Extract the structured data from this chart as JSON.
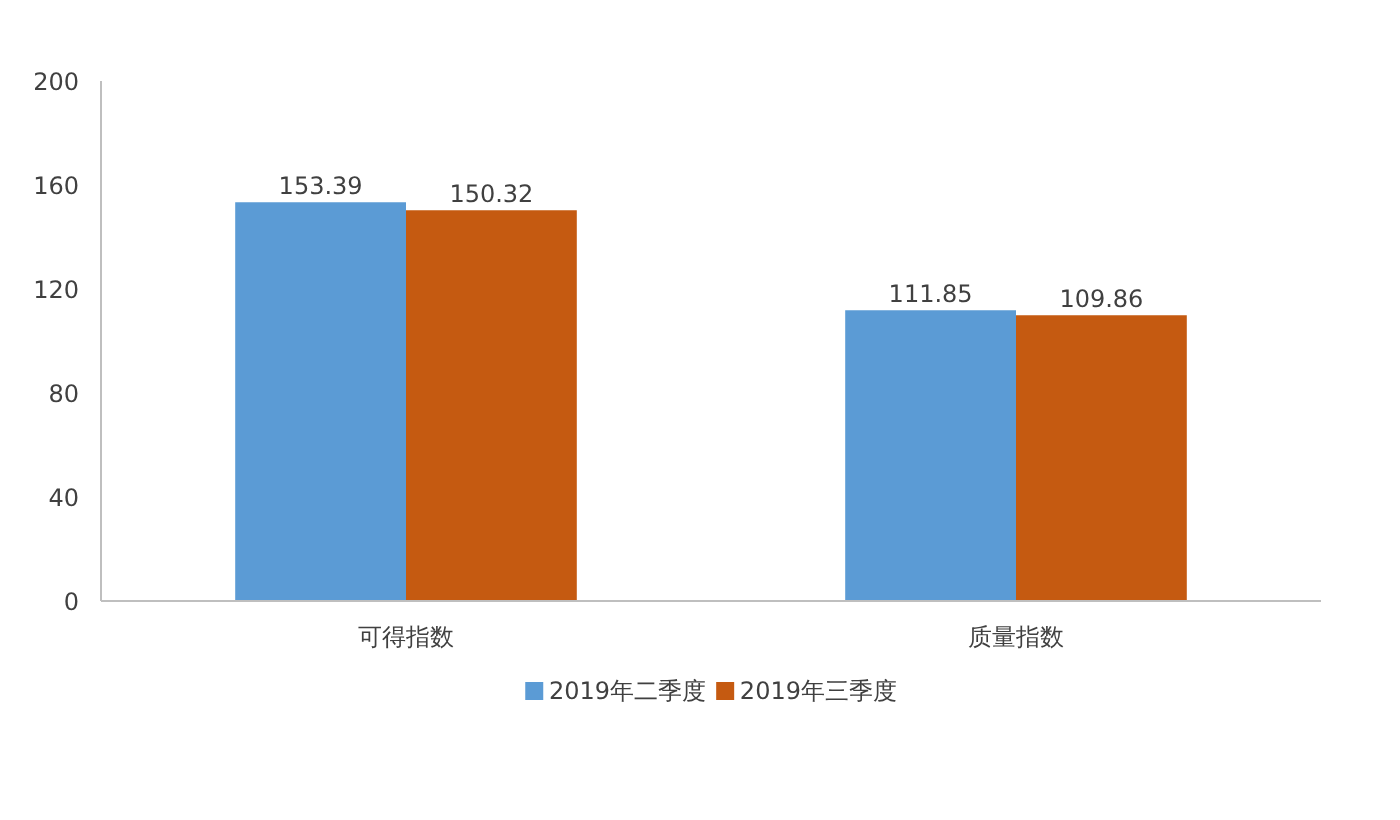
{
  "chart_data": {
    "type": "bar",
    "categories": [
      "可得指数",
      "质量指数"
    ],
    "series": [
      {
        "name": "2019年二季度",
        "color": "#5b9bd5",
        "values": [
          153.39,
          111.85
        ]
      },
      {
        "name": "2019年三季度",
        "color": "#c55a11",
        "values": [
          150.32,
          109.86
        ]
      }
    ],
    "ylim": [
      0,
      200
    ],
    "yticks": [
      0,
      40,
      80,
      120,
      160,
      200
    ],
    "grid": false,
    "legend": "bottom",
    "data_labels": true
  }
}
